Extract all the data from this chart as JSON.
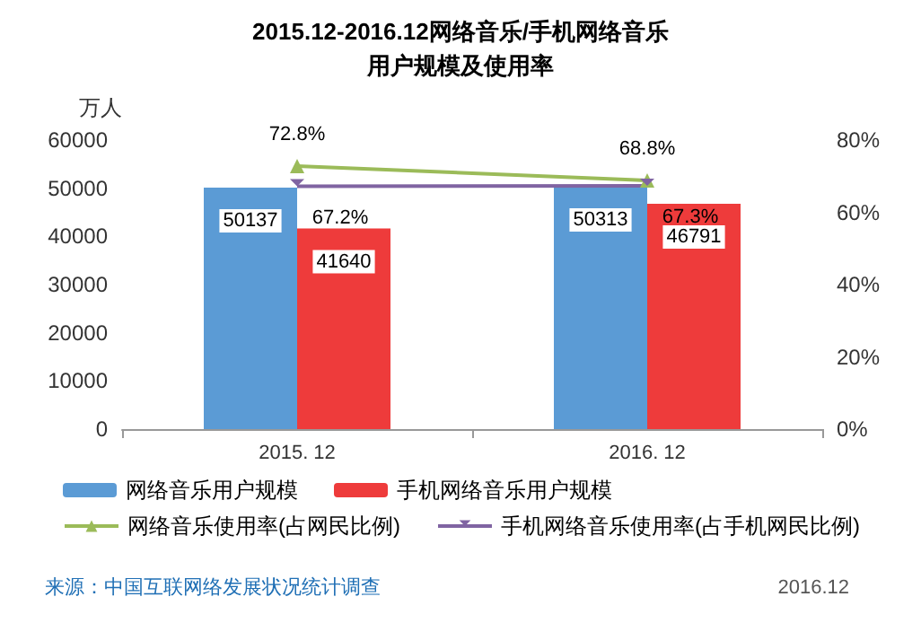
{
  "chart_data": {
    "type": "bar",
    "title": "2015.12-2016.12网络音乐/手机网络音乐",
    "subtitle": "用户规模及使用率",
    "ylabel": "万人",
    "categories": [
      "2015. 12",
      "2016. 12"
    ],
    "series": [
      {
        "name": "网络音乐用户规模",
        "color": "#5b9bd5",
        "values": [
          50137,
          50313
        ],
        "value_labels": [
          "50137",
          "50313"
        ]
      },
      {
        "name": "手机网络音乐用户规模",
        "color": "#ee3b3b",
        "values": [
          41640,
          46791
        ],
        "value_labels": [
          "41640",
          "46791"
        ]
      },
      {
        "name": "网络音乐使用率(占网民比例)",
        "type": "line",
        "axis": "y2",
        "marker": "triangle",
        "color": "#9bbb59",
        "values": [
          72.8,
          68.8
        ],
        "value_labels": [
          "72.8%",
          "68.8%"
        ]
      },
      {
        "name": "手机网络音乐使用率(占手机网民比例)",
        "type": "line",
        "axis": "y2",
        "marker": "cross",
        "color": "#8064a2",
        "values": [
          67.2,
          67.3
        ],
        "value_labels": [
          "67.2%",
          "67.3%"
        ]
      }
    ],
    "ylim": [
      0,
      60000
    ],
    "yticks": [
      0,
      10000,
      20000,
      30000,
      40000,
      50000,
      60000
    ],
    "y2lim": [
      0,
      80
    ],
    "y2ticks": [
      {
        "value": 0,
        "label": "0%"
      },
      {
        "value": 20,
        "label": "20%"
      },
      {
        "value": 40,
        "label": "40%"
      },
      {
        "value": 60,
        "label": "60%"
      },
      {
        "value": 80,
        "label": "80%"
      }
    ],
    "legend": "bottom",
    "annotations": [
      "来源：中国互联网络发展状况统计调查",
      "2016.12"
    ]
  }
}
